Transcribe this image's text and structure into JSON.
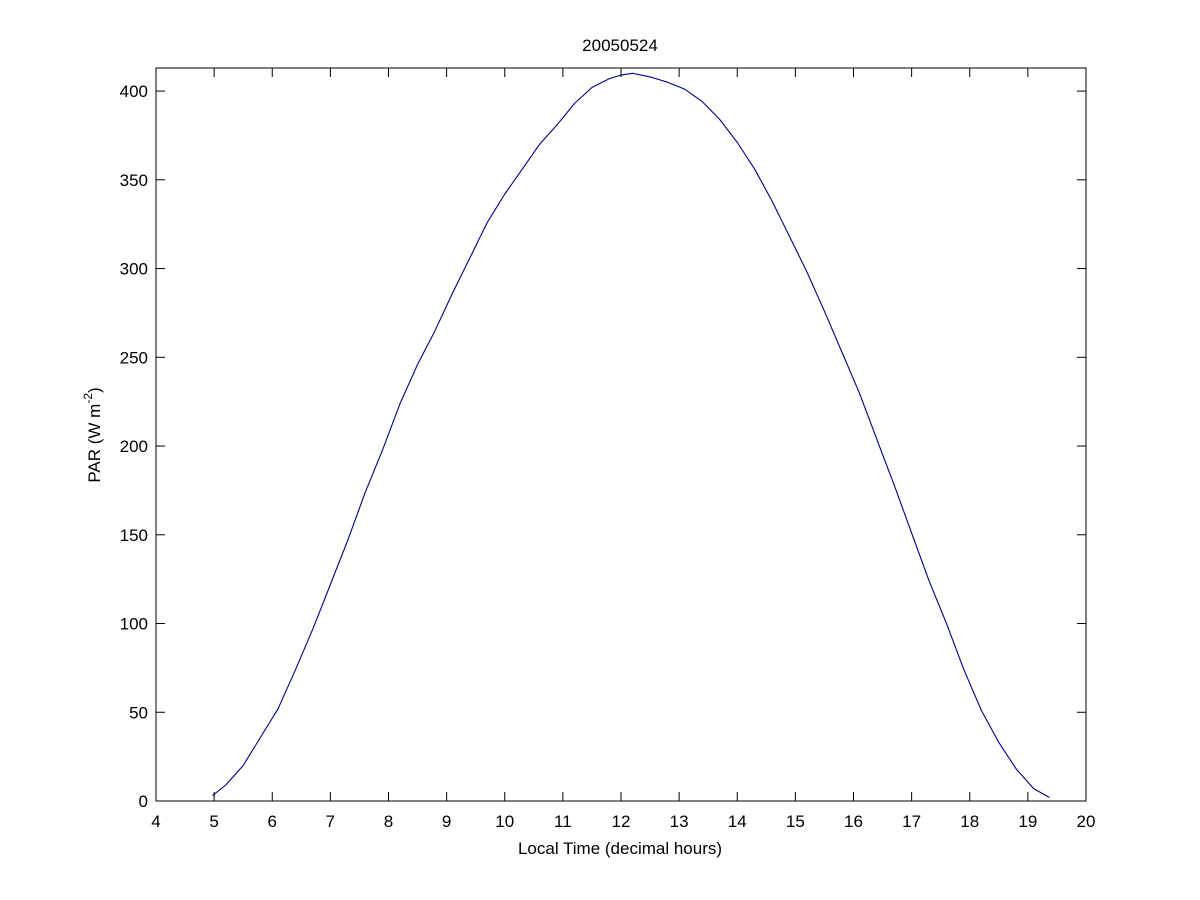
{
  "chart_data": {
    "type": "line",
    "title": "20050524",
    "xlabel": "Local Time (decimal hours)",
    "ylabel": {
      "prefix": "PAR (W m",
      "superscript": "-2",
      "suffix": ")"
    },
    "xlim": [
      4,
      20
    ],
    "ylim": [
      0,
      413
    ],
    "xticks": [
      4,
      5,
      6,
      7,
      8,
      9,
      10,
      11,
      12,
      13,
      14,
      15,
      16,
      17,
      18,
      19,
      20
    ],
    "yticks": [
      0,
      50,
      100,
      150,
      200,
      250,
      300,
      350,
      400
    ],
    "grid": false,
    "colors": {
      "series": "#00008b",
      "axes": "#000000",
      "background": "#ffffff"
    },
    "series": [
      {
        "x": [
          4.97,
          5.2,
          5.5,
          5.8,
          6.1,
          6.4,
          6.7,
          7.0,
          7.3,
          7.6,
          7.9,
          8.2,
          8.5,
          8.8,
          9.1,
          9.4,
          9.7,
          10.0,
          10.3,
          10.6,
          10.9,
          11.2,
          11.5,
          11.8,
          12.0,
          12.2,
          12.5,
          12.8,
          13.1,
          13.4,
          13.7,
          14.0,
          14.3,
          14.6,
          14.9,
          15.2,
          15.5,
          15.8,
          16.1,
          16.4,
          16.7,
          17.0,
          17.3,
          17.6,
          17.9,
          18.2,
          18.5,
          18.8,
          19.1,
          19.37
        ],
        "y": [
          3,
          9,
          20,
          36,
          52,
          74,
          97,
          122,
          147,
          174,
          198,
          224,
          246,
          265,
          286,
          306,
          326,
          342,
          356,
          370,
          381,
          393,
          402,
          407,
          409,
          410,
          408,
          405,
          401,
          394,
          384,
          371,
          356,
          338,
          318,
          298,
          276,
          253,
          230,
          204,
          178,
          151,
          124,
          100,
          74,
          51,
          33,
          18,
          7,
          2
        ]
      }
    ]
  }
}
